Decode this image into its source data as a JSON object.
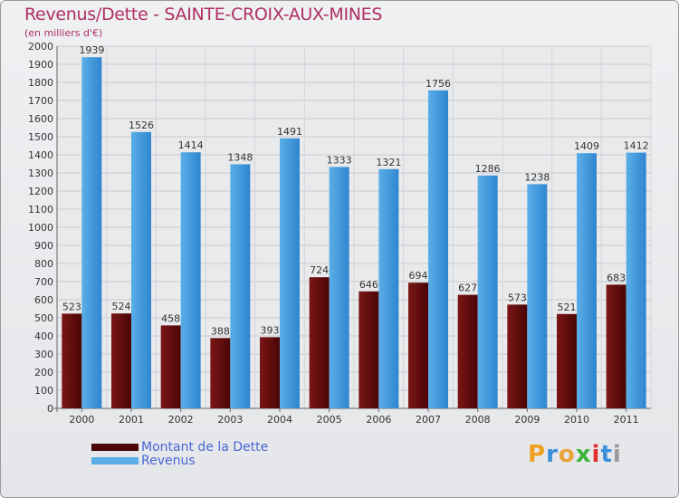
{
  "header": {
    "title": "Revenus/Dette - SAINTE-CROIX-AUX-MINES",
    "subtitle": "(en milliers d'€)"
  },
  "legend": {
    "debt_label": "Montant de la Dette",
    "revenue_label": "Revenus"
  },
  "brand": {
    "logo_text": "Proxiti"
  },
  "colors": {
    "debt": "#7a1616",
    "debt_dark": "#4a0505",
    "revenue": "#5aaee8",
    "revenue_dark": "#2f86cf",
    "title": "#b03060",
    "legend_text": "#4a67d6"
  },
  "chart_data": {
    "type": "bar",
    "categories": [
      "2000",
      "2001",
      "2002",
      "2003",
      "2004",
      "2005",
      "2006",
      "2007",
      "2008",
      "2009",
      "2010",
      "2011"
    ],
    "series": [
      {
        "name": "Montant de la Dette",
        "values": [
          523,
          524,
          458,
          388,
          393,
          724,
          646,
          694,
          627,
          573,
          521,
          683
        ]
      },
      {
        "name": "Revenus",
        "values": [
          1939,
          1526,
          1414,
          1348,
          1491,
          1333,
          1321,
          1756,
          1286,
          1238,
          1409,
          1412
        ]
      }
    ],
    "yticks": [
      0,
      100,
      200,
      300,
      400,
      500,
      600,
      700,
      800,
      900,
      1000,
      1100,
      1200,
      1300,
      1400,
      1500,
      1600,
      1700,
      1800,
      1900,
      2000
    ],
    "ylim": [
      0,
      2000
    ],
    "grid": true,
    "legend_position": "bottom-left",
    "show_data_labels": true
  }
}
